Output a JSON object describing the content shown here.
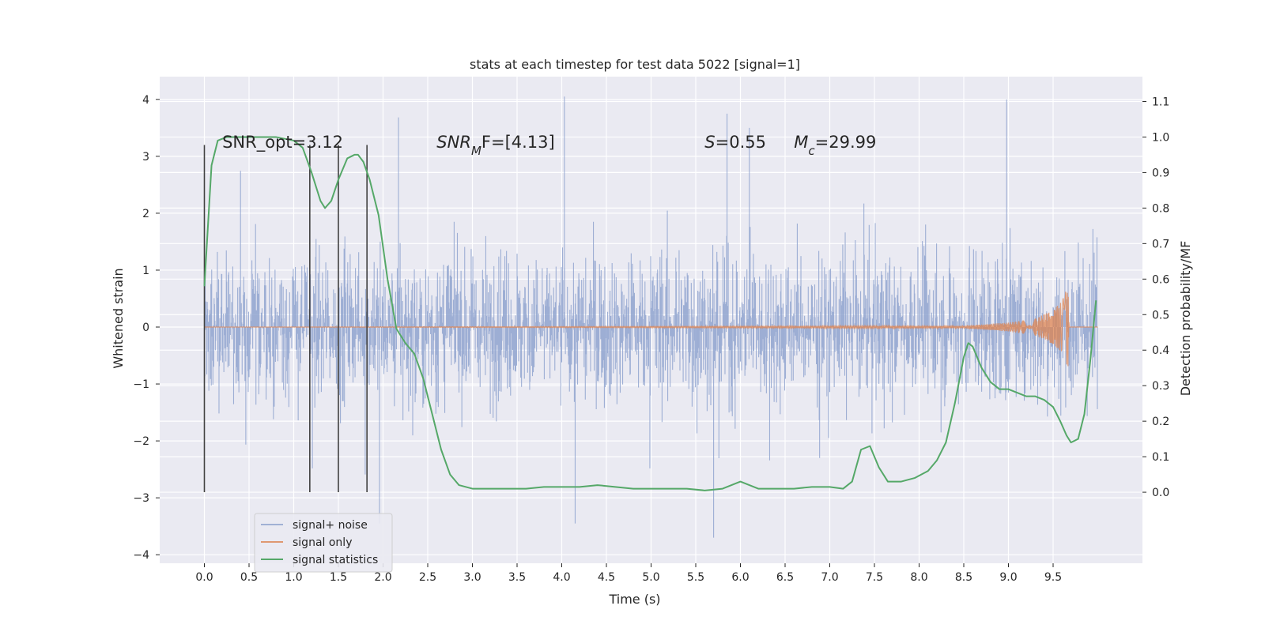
{
  "chart_data": {
    "type": "line",
    "title": "stats at each timestep for test data 5022 [signal=1]",
    "xlabel": "Time (s)",
    "ylabel": "Whitened strain",
    "y2label": "Detection probability/MF",
    "xlim": [
      -0.5,
      10.5
    ],
    "ylim": [
      -4.15,
      4.4
    ],
    "y2lim": [
      -0.2,
      1.17
    ],
    "xticks": [
      "0.0",
      "0.5",
      "1.0",
      "1.5",
      "2.0",
      "2.5",
      "3.0",
      "3.5",
      "4.0",
      "4.5",
      "5.0",
      "5.5",
      "6.0",
      "6.5",
      "7.0",
      "7.5",
      "8.0",
      "8.5",
      "9.0",
      "9.5"
    ],
    "yticks": [
      "4",
      "3",
      "2",
      "1",
      "0",
      "−1",
      "−2",
      "−3",
      "−4"
    ],
    "y2ticks": [
      "1.1",
      "1.0",
      "0.9",
      "0.8",
      "0.7",
      "0.6",
      "0.5",
      "0.4",
      "0.3",
      "0.2",
      "0.1",
      "0.0"
    ],
    "grid": true,
    "legend_position": "lower-left",
    "colors": {
      "background": "#eaeaf2",
      "grid": "#ffffff",
      "noise": "#8fa3cf",
      "signal": "#dd8452",
      "statistics": "#55a868",
      "vlines": "#404040"
    },
    "series": [
      {
        "name": "signal+ noise",
        "y_range": [
          -3.7,
          4.05
        ],
        "peaks": [
          [
            4.03,
            4.05
          ],
          [
            8.98,
            4.0
          ],
          [
            5.7,
            -3.7
          ],
          [
            4.15,
            -3.45
          ],
          [
            1.96,
            -3.45
          ],
          [
            5.85,
            3.75
          ],
          [
            6.1,
            3.5
          ]
        ]
      },
      {
        "name": "signal only",
        "x": [
          0.0,
          8.5,
          9.0,
          9.3,
          9.5,
          9.6,
          9.63,
          9.67,
          9.68
        ],
        "amplitude": [
          0.0,
          0.02,
          0.08,
          0.15,
          0.3,
          0.45,
          0.6,
          0.7,
          0.0
        ]
      },
      {
        "name": "signal statistics",
        "axis": "right",
        "x": [
          0.0,
          0.08,
          0.15,
          0.25,
          0.4,
          0.6,
          0.8,
          1.0,
          1.1,
          1.2,
          1.3,
          1.35,
          1.42,
          1.5,
          1.6,
          1.68,
          1.72,
          1.78,
          1.85,
          1.95,
          2.05,
          2.15,
          2.25,
          2.35,
          2.45,
          2.55,
          2.65,
          2.75,
          2.85,
          3.0,
          3.2,
          3.4,
          3.6,
          3.8,
          4.0,
          4.2,
          4.4,
          4.6,
          4.8,
          5.0,
          5.2,
          5.4,
          5.6,
          5.8,
          5.9,
          6.0,
          6.1,
          6.2,
          6.4,
          6.6,
          6.8,
          7.0,
          7.15,
          7.25,
          7.35,
          7.45,
          7.55,
          7.65,
          7.8,
          7.95,
          8.1,
          8.2,
          8.3,
          8.4,
          8.5,
          8.55,
          8.6,
          8.7,
          8.8,
          8.9,
          9.0,
          9.1,
          9.2,
          9.3,
          9.4,
          9.5,
          9.58,
          9.65,
          9.7,
          9.78,
          9.85,
          9.92,
          9.98
        ],
        "values": [
          0.58,
          0.92,
          0.99,
          1.0,
          1.0,
          1.0,
          1.0,
          0.99,
          0.97,
          0.9,
          0.82,
          0.8,
          0.82,
          0.88,
          0.94,
          0.95,
          0.95,
          0.93,
          0.88,
          0.78,
          0.6,
          0.46,
          0.42,
          0.39,
          0.32,
          0.22,
          0.12,
          0.05,
          0.02,
          0.01,
          0.01,
          0.01,
          0.01,
          0.015,
          0.015,
          0.015,
          0.02,
          0.015,
          0.01,
          0.01,
          0.01,
          0.01,
          0.005,
          0.01,
          0.02,
          0.03,
          0.02,
          0.01,
          0.01,
          0.01,
          0.015,
          0.015,
          0.01,
          0.03,
          0.12,
          0.13,
          0.07,
          0.03,
          0.03,
          0.04,
          0.06,
          0.09,
          0.14,
          0.25,
          0.38,
          0.42,
          0.41,
          0.35,
          0.31,
          0.29,
          0.29,
          0.28,
          0.27,
          0.27,
          0.26,
          0.24,
          0.2,
          0.16,
          0.14,
          0.15,
          0.22,
          0.38,
          0.54
        ]
      }
    ],
    "vlines": [
      0.0,
      1.18,
      1.5,
      1.82
    ],
    "vline_range": [
      -2.9,
      3.2
    ],
    "annotations": [
      {
        "text": "SNR_opt=3.12",
        "x": 0.2,
        "y": 3.15
      },
      {
        "text": "SNRMF=[4.13]",
        "base": "SNR",
        "sub": "M",
        "rest": "F=[4.13]",
        "x": 2.6,
        "y": 3.15,
        "italic": true
      },
      {
        "text": "S=0.55",
        "base": "S",
        "rest": "=0.55",
        "x": 5.6,
        "y": 3.15,
        "italic": true
      },
      {
        "text": "Mc=29.99",
        "base": "M",
        "sub": "c",
        "rest": "=29.99",
        "x": 6.6,
        "y": 3.15,
        "italic": true
      }
    ]
  }
}
